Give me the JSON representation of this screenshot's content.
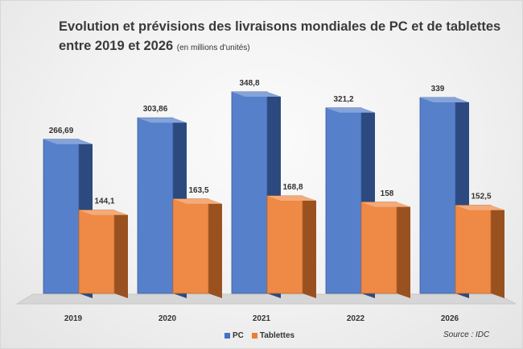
{
  "title_main": "Evolution et prévisions des livraisons mondiales de PC et de tablettes entre 2019 et 2026",
  "title_unit": "(en millions d'unités)",
  "source": "Source : IDC",
  "colors": {
    "pc": "#4472c4",
    "tablettes": "#ed7d31"
  },
  "chart_data": {
    "type": "bar",
    "categories": [
      "2019",
      "2020",
      "2021",
      "2022",
      "2026"
    ],
    "series": [
      {
        "name": "PC",
        "values": [
          266.69,
          303.86,
          348.8,
          321.2,
          339
        ],
        "labels": [
          "266,69",
          "303,86",
          "348,8",
          "321,2",
          "339"
        ]
      },
      {
        "name": "Tablettes",
        "values": [
          144.1,
          163.5,
          168.8,
          158,
          152.5
        ],
        "labels": [
          "144,1",
          "163,5",
          "168,8",
          "158",
          "152,5"
        ]
      }
    ],
    "style": "3d-clustered-column",
    "grid": false,
    "legend": "bottom-center"
  }
}
